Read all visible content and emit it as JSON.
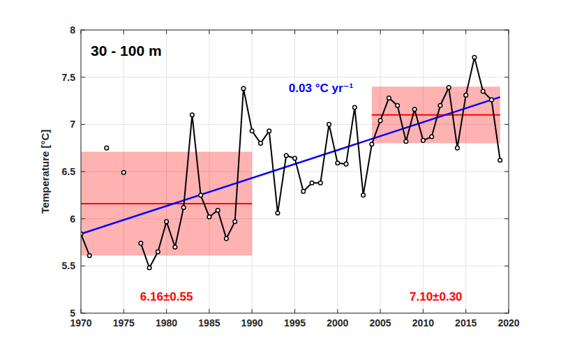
{
  "chart_data": {
    "type": "line",
    "title": "30 - 100 m",
    "y_label": "Temperature [°C]",
    "annotation": "0.03 °C yr⁻¹",
    "xlim": [
      1970,
      2020
    ],
    "xticks": [
      1970,
      1975,
      1980,
      1985,
      1990,
      1995,
      2000,
      2005,
      2010,
      2015,
      2020
    ],
    "ylim": [
      5,
      8
    ],
    "yticks": [
      5,
      5.5,
      6,
      6.5,
      7,
      7.5,
      8
    ],
    "grid": true,
    "series": [
      {
        "color": "#000000",
        "marker": "circle",
        "line_style": "solid",
        "x": [
          1970,
          1971,
          1972,
          1973,
          1974,
          1975,
          1976,
          1977,
          1978,
          1979,
          1980,
          1981,
          1982,
          1983,
          1984,
          1985,
          1986,
          1987,
          1988,
          1989,
          1990,
          1991,
          1992,
          1993,
          1994,
          1995,
          1996,
          1997,
          1998,
          1999,
          2000,
          2001,
          2002,
          2003,
          2004,
          2005,
          2006,
          2007,
          2008,
          2009,
          2010,
          2011,
          2012,
          2013,
          2014,
          2015,
          2016,
          2017,
          2018,
          2019
        ],
        "values": [
          5.84,
          5.61,
          null,
          6.75,
          null,
          6.49,
          null,
          5.74,
          5.48,
          5.65,
          5.97,
          5.7,
          6.12,
          7.1,
          6.25,
          6.02,
          6.09,
          5.79,
          5.97,
          7.38,
          6.93,
          6.8,
          6.93,
          6.06,
          6.67,
          6.64,
          6.29,
          6.38,
          6.38,
          7.0,
          6.59,
          6.58,
          7.18,
          6.25,
          6.79,
          7.04,
          7.28,
          7.2,
          6.82,
          7.16,
          6.83,
          6.87,
          7.2,
          7.39,
          6.75,
          7.31,
          7.71,
          7.35,
          7.26,
          6.62
        ]
      },
      {
        "type": "line",
        "color": "#0000ff",
        "line_style": "solid",
        "x": [
          1970,
          2019
        ],
        "values": [
          5.84,
          7.29
        ]
      }
    ],
    "periods": [
      {
        "start": 1970,
        "end": 1990,
        "mean": 6.16,
        "std": 0.55,
        "label": "6.16±0.55",
        "color": "#ff0000"
      },
      {
        "start": 2004,
        "end": 2019,
        "mean": 7.1,
        "std": 0.3,
        "label": "7.10±0.30",
        "color": "#ff0000"
      }
    ]
  }
}
